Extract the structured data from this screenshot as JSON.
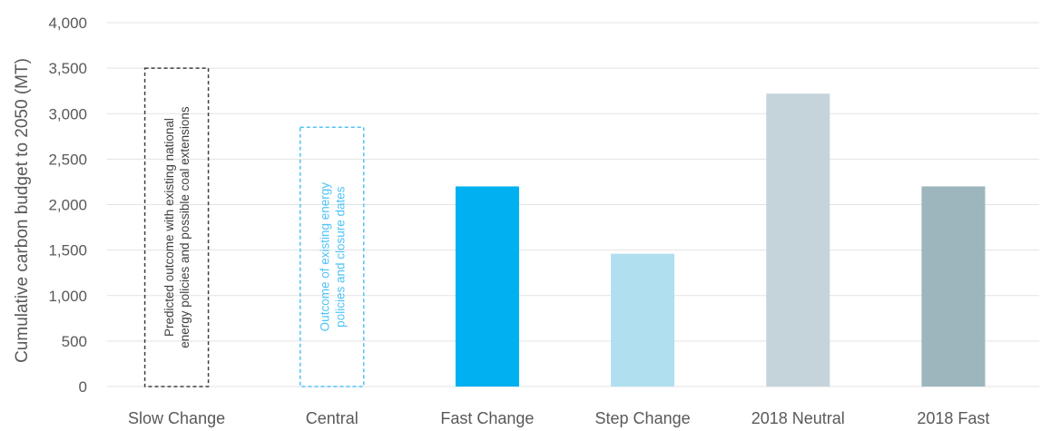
{
  "chart_data": {
    "type": "bar",
    "categories": [
      "Slow Change",
      "Central",
      "Fast Change",
      "Step Change",
      "2018 Neutral",
      "2018 Fast"
    ],
    "values": [
      null,
      null,
      2200,
      1460,
      3220,
      2200
    ],
    "ylabel": "Cumulative  carbon budget to 2050 (MT)",
    "ylim": [
      0,
      4000
    ],
    "yticks": [
      "0",
      "500",
      "1,000",
      "1,500",
      "2,000",
      "2,500",
      "3,000",
      "3,500",
      "4,000"
    ],
    "grid": true,
    "colors": {
      "Fast Change": "#00b0f0",
      "Step Change": "#b0dff0",
      "2018 Neutral": "#c5d4da",
      "2018 Fast": "#9db5bd",
      "gridline": "#e3e3e3",
      "axis_text": "#595959"
    },
    "annotations": [
      {
        "category": "Slow Change",
        "style": "dashed-outline",
        "color": "#404040",
        "top_value": 3500,
        "lines": [
          "Predicted outcome with existing national",
          "energy policies and possible coal extensions"
        ]
      },
      {
        "category": "Central",
        "style": "dashed-outline",
        "color": "#4fc3f7",
        "top_value": 2850,
        "lines": [
          "Outcome of existing energy",
          "policies and closure dates"
        ]
      }
    ]
  }
}
